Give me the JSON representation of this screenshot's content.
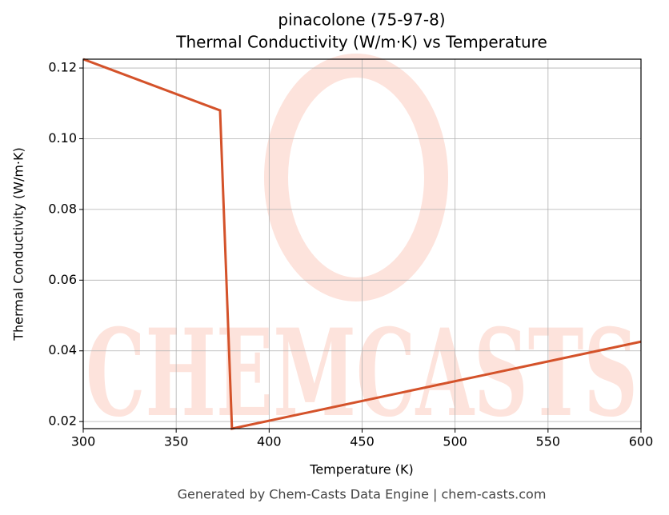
{
  "chart_data": {
    "type": "line",
    "title": "pinacolone (75-97-8)",
    "subtitle": "Thermal Conductivity (W/m·K) vs Temperature",
    "x_label": "Temperature (K)",
    "y_label": "Thermal Conductivity (W/m·K)",
    "watermark": "CHEMCASTS",
    "footer": "Generated by Chem-Casts Data Engine | chem-casts.com",
    "x": [
      300,
      373.6,
      380,
      600
    ],
    "series": [
      {
        "name": "Thermal Conductivity",
        "color": "#d4522a",
        "values": [
          0.1225,
          0.108,
          0.018,
          0.0426
        ]
      }
    ],
    "xlim": [
      300,
      600
    ],
    "xticks": [
      300,
      350,
      400,
      450,
      500,
      550,
      600
    ],
    "ylim": [
      0.018,
      0.1225
    ],
    "yticks": [
      0.02,
      0.04,
      0.06,
      0.08,
      {
        "value": 0.1,
        "label": "0.10"
      },
      0.12
    ],
    "grid": true
  }
}
